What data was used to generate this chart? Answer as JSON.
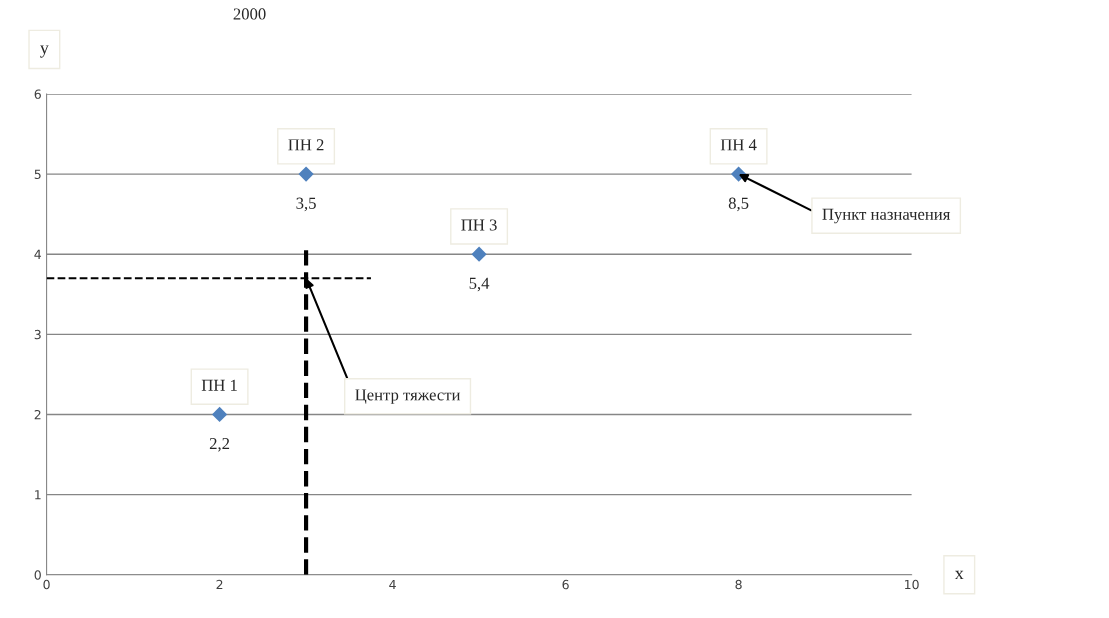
{
  "chart_data": {
    "type": "scatter",
    "title": "2000",
    "xlabel": "x",
    "ylabel": "y",
    "x": [
      2,
      3,
      5,
      8
    ],
    "series": [
      {
        "color": "#4f81bd",
        "values": [
          2,
          5,
          4,
          5
        ]
      }
    ],
    "annotations": [
      {
        "text": "ПН 1",
        "x": 2,
        "y": 2
      },
      {
        "text": "ПН 2",
        "x": 3,
        "y": 5
      },
      {
        "text": "ПН 3",
        "x": 5,
        "y": 4
      },
      {
        "text": "ПН 4",
        "x": 8,
        "y": 5
      },
      {
        "text": "Центр тяжести",
        "x": 3,
        "y": 3.7
      },
      {
        "text": "Пункт назначения",
        "x": 8,
        "y": 5
      },
      {
        "text": "2,2",
        "x": 2,
        "y": 2
      },
      {
        "text": "3,5",
        "x": 3,
        "y": 5
      },
      {
        "text": "5,4",
        "x": 5,
        "y": 4
      },
      {
        "text": "8,5",
        "x": 8,
        "y": 5
      }
    ],
    "ref_lines": [
      {
        "axis": "x",
        "value": 3,
        "color": "#000000",
        "line_style": "dashed"
      },
      {
        "axis": "y",
        "value": 3.7,
        "color": "#000000",
        "line_style": "dashed"
      }
    ],
    "xlim": [
      0,
      10
    ],
    "ylim": [
      0,
      6
    ],
    "xticks": [
      0,
      2,
      4,
      6,
      8,
      10
    ],
    "yticks": [
      0,
      1,
      2,
      3,
      4,
      5,
      6
    ],
    "grid": "y",
    "marker": "diamond",
    "legend": false
  }
}
